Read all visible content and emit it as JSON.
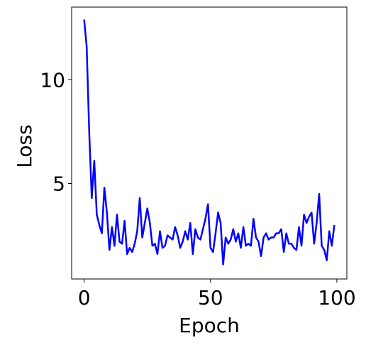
{
  "chart_data": {
    "type": "line",
    "x_label": "Epoch",
    "y_label": "Loss",
    "x": [
      0,
      1,
      2,
      3,
      4,
      5,
      6,
      7,
      8,
      9,
      10,
      11,
      12,
      13,
      14,
      15,
      16,
      17,
      18,
      19,
      20,
      21,
      22,
      23,
      24,
      25,
      26,
      27,
      28,
      29,
      30,
      31,
      32,
      33,
      34,
      35,
      36,
      37,
      38,
      39,
      40,
      41,
      42,
      43,
      44,
      45,
      46,
      47,
      48,
      49,
      50,
      51,
      52,
      53,
      54,
      55,
      56,
      57,
      58,
      59,
      60,
      61,
      62,
      63,
      64,
      65,
      66,
      67,
      68,
      69,
      70,
      71,
      72,
      73,
      74,
      75,
      76,
      77,
      78,
      79,
      80,
      81,
      82,
      83,
      84,
      85,
      86,
      87,
      88,
      89,
      90,
      91,
      92,
      93,
      94,
      95,
      96,
      97,
      98,
      99
    ],
    "series": [
      {
        "color": "#0000ff",
        "values": [
          12.9,
          11.6,
          7.5,
          4.3,
          6.1,
          3.5,
          3.0,
          2.6,
          4.8,
          3.6,
          1.8,
          2.9,
          2.0,
          3.5,
          2.2,
          2.1,
          3.2,
          1.6,
          1.9,
          1.7,
          2.1,
          2.7,
          4.3,
          2.4,
          3.1,
          3.8,
          3.1,
          2.0,
          2.1,
          1.6,
          2.7,
          1.9,
          2.0,
          2.5,
          2.4,
          2.3,
          2.9,
          2.5,
          1.9,
          2.2,
          2.7,
          2.3,
          3.1,
          1.6,
          2.8,
          2.4,
          2.3,
          2.8,
          3.3,
          4.0,
          1.9,
          1.7,
          2.6,
          3.6,
          3.1,
          1.1,
          2.4,
          2.1,
          2.3,
          2.8,
          2.2,
          2.6,
          1.9,
          2.9,
          2.0,
          2.1,
          2.0,
          3.3,
          2.4,
          2.2,
          1.5,
          2.4,
          2.6,
          2.3,
          2.4,
          2.4,
          2.6,
          2.6,
          2.8,
          1.7,
          2.6,
          2.1,
          2.1,
          1.9,
          1.8,
          2.9,
          2.0,
          3.5,
          3.1,
          3.4,
          3.6,
          2.1,
          3.1,
          4.5,
          2.0,
          1.8,
          1.3,
          2.7,
          2.0,
          3.0
        ]
      }
    ],
    "xlim": [
      -4.95,
      103.95
    ],
    "ylim": [
      0.4,
      13.5
    ],
    "xticks": [
      0,
      50,
      100
    ],
    "yticks": [
      5,
      10
    ]
  }
}
